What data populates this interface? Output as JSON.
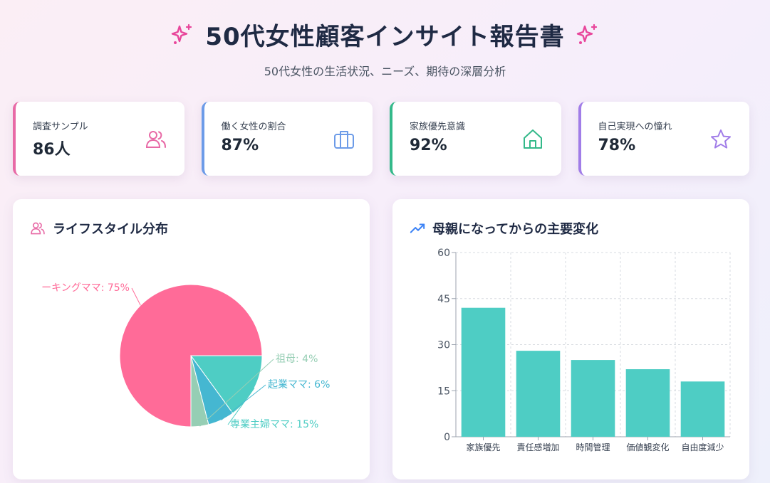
{
  "header": {
    "title": "50代女性顧客インサイト報告書",
    "subtitle": "50代女性の生活状況、ニーズ、期待の深層分析",
    "sparkle_icon": "sparkles-icon",
    "accent_color": "#e8469b"
  },
  "stats": [
    {
      "label": "調査サンプル",
      "value": "86人",
      "icon": "users-icon",
      "color": "#e86aa6"
    },
    {
      "label": "働く女性の割合",
      "value": "87%",
      "icon": "briefcase-icon",
      "color": "#6c9be8"
    },
    {
      "label": "家族優先意識",
      "value": "92%",
      "icon": "home-icon",
      "color": "#34b98a"
    },
    {
      "label": "自己実現への憧れ",
      "value": "78%",
      "icon": "star-icon",
      "color": "#a17de8"
    }
  ],
  "pie_card": {
    "title": "ライフスタイル分布",
    "icon": "users-icon",
    "icon_color": "#e86aa6"
  },
  "bar_card": {
    "title": "母親になってからの主要変化",
    "icon": "trending-up-icon",
    "icon_color": "#3b82f6"
  },
  "chart_data": [
    {
      "type": "pie",
      "title": "ライフスタイル分布",
      "slices": [
        {
          "label": "ーキングママ: 75%",
          "value": 75,
          "color": "#ff6b98"
        },
        {
          "label": "専業主婦ママ: 15%",
          "value": 15,
          "color": "#4ecdc4"
        },
        {
          "label": "起業ママ: 6%",
          "value": 6,
          "color": "#45b7d1"
        },
        {
          "label": "祖母: 4%",
          "value": 4,
          "color": "#96ceb4"
        }
      ]
    },
    {
      "type": "bar",
      "title": "母親になってからの主要変化",
      "categories": [
        "家族優先",
        "責任感増加",
        "時間管理",
        "価値観変化",
        "自由度減少"
      ],
      "values": [
        42,
        28,
        25,
        22,
        18
      ],
      "ylim": [
        0,
        60
      ],
      "yticks": [
        "0",
        "15",
        "30",
        "45",
        "60"
      ],
      "grid": true,
      "color": "#4ecdc4"
    }
  ]
}
